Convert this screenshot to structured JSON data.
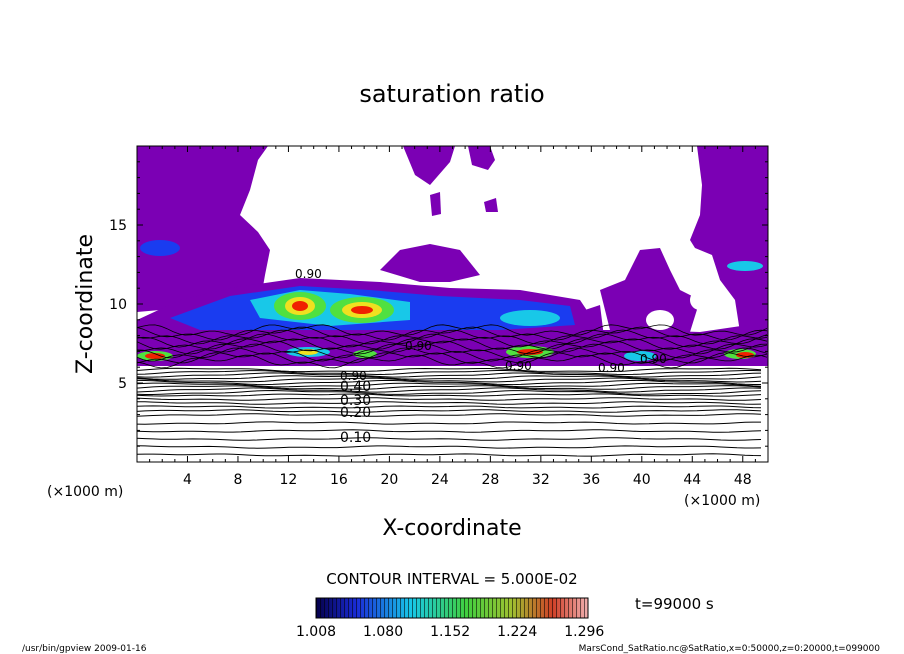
{
  "chart_data": {
    "type": "heatmap",
    "title": "saturation ratio",
    "xlabel": "X-coordinate",
    "ylabel": "Z-coordinate",
    "x_unit": "(×1000 m)",
    "x_unit_right": "(×1000 m)",
    "xlim": [
      0,
      50
    ],
    "ylim": [
      0,
      20
    ],
    "x_ticks": [
      "4",
      "8",
      "12",
      "16",
      "20",
      "24",
      "28",
      "32",
      "36",
      "40",
      "44",
      "48"
    ],
    "y_ticks": [
      "5",
      "10",
      "15"
    ],
    "contour_labels": [
      "0.10",
      "0.20",
      "0.30",
      "0.40",
      "0.90",
      "0.90",
      "0.90",
      "0.90",
      "0.90",
      "0.90"
    ],
    "contour_interval_text": "CONTOUR INTERVAL = 5.000E-02",
    "colorbar_ticks": [
      "1.008",
      "1.080",
      "1.152",
      "1.224",
      "1.296"
    ],
    "colorbar_range": [
      1.008,
      1.3
    ],
    "time_text": "t=99000 s",
    "footer_left": "/usr/bin/gpview  2009-01-16",
    "footer_right": "MarsCond_SatRatio.nc@SatRatio,x=0:50000,z=0:20000,t=099000",
    "colors": {
      "purple": "#7b00b4",
      "blue": "#1a3cf0",
      "cyan": "#18c8e8",
      "green": "#50e040",
      "yellow": "#f0e020",
      "red": "#f02000"
    }
  }
}
